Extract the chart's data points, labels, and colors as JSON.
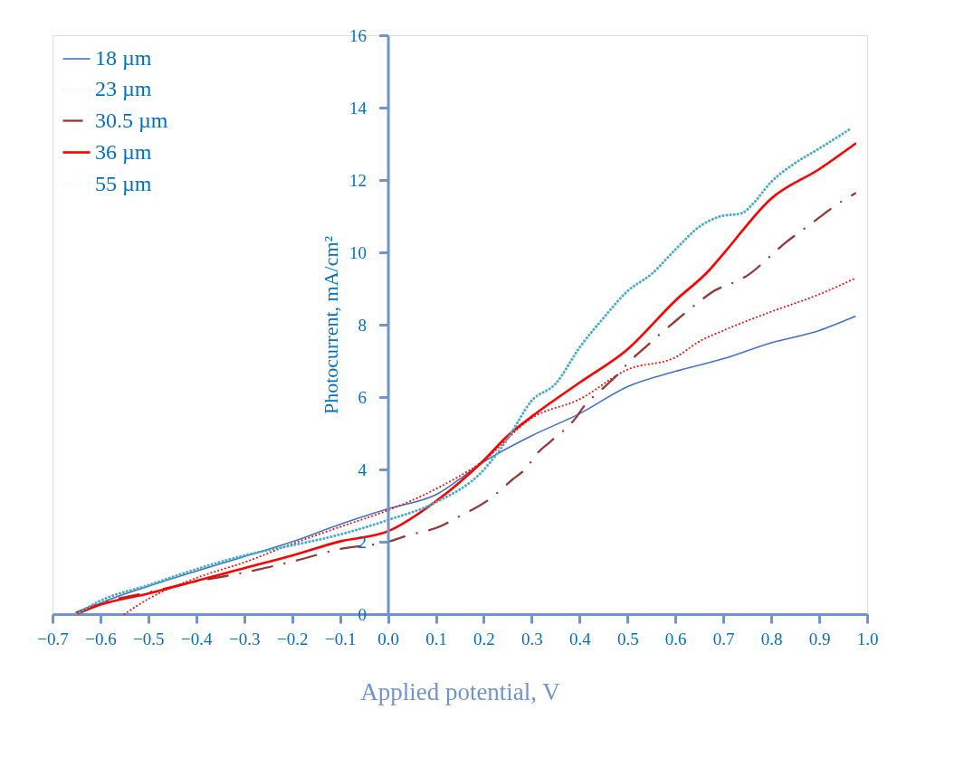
{
  "chart_data": {
    "type": "line",
    "xlabel": "Applied potential, V",
    "ylabel": "Photocurrent, mA/cm²",
    "xlim": [
      -0.7,
      1.0
    ],
    "ylim": [
      0,
      16
    ],
    "xticks": [
      -0.7,
      -0.6,
      -0.5,
      -0.4,
      -0.3,
      -0.2,
      -0.1,
      {
        "value": 0,
        "label": "0.0"
      },
      0.1,
      0.2,
      0.3,
      0.4,
      0.5,
      0.6,
      0.7,
      0.8,
      0.9,
      {
        "value": 1.0,
        "label": "1.0"
      }
    ],
    "yticks": [
      0,
      2,
      4,
      6,
      8,
      10,
      12,
      14,
      16
    ],
    "grid": false,
    "legend": "top left",
    "marker": "none",
    "series": [
      {
        "name": "18 µm",
        "color": "#4472c4",
        "line_style": "solid",
        "x": [
          -0.64,
          -0.6,
          -0.5,
          -0.4,
          -0.3,
          -0.2,
          -0.1,
          0,
          0.1,
          0.2,
          0.3,
          0.4,
          0.5,
          0.6,
          0.7,
          0.8,
          0.9,
          0.975
        ],
        "values": [
          0.05,
          0.3,
          0.77,
          1.19,
          1.59,
          2.0,
          2.48,
          2.91,
          3.3,
          4.21,
          4.93,
          5.54,
          6.29,
          6.71,
          7.06,
          7.5,
          7.84,
          8.23
        ]
      },
      {
        "name": "23 µm",
        "color": "#ff0000",
        "line_style": "dotted",
        "x": [
          -0.55,
          -0.5,
          -0.4,
          -0.3,
          -0.2,
          -0.1,
          0,
          0.1,
          0.2,
          0.3,
          0.4,
          0.5,
          0.6,
          0.65,
          0.7,
          0.8,
          0.9,
          0.975
        ],
        "values": [
          0,
          0.42,
          1.0,
          1.43,
          1.94,
          2.41,
          2.87,
          3.46,
          4.25,
          5.42,
          5.94,
          6.76,
          7.1,
          7.54,
          7.84,
          8.36,
          8.84,
          9.28
        ]
      },
      {
        "name": "30.5 µm",
        "color": "#953735",
        "line_style": "dashdot",
        "x": [
          -0.65,
          -0.6,
          -0.5,
          -0.4,
          -0.3,
          -0.2,
          -0.1,
          0,
          0.04,
          0.11,
          0.14,
          0.21,
          0.26,
          0.29,
          0.31,
          0.34,
          0.39,
          0.41,
          0.44,
          0.47,
          0.51,
          0.54,
          0.57,
          0.6,
          0.65,
          0.68,
          0.72,
          0.75,
          0.8,
          0.83,
          0.86,
          0.89,
          0.94,
          0.975
        ],
        "values": [
          0.05,
          0.3,
          0.6,
          0.9,
          1.15,
          1.45,
          1.8,
          2.0,
          2.17,
          2.43,
          2.64,
          3.16,
          3.72,
          4.06,
          4.42,
          4.78,
          5.39,
          5.76,
          6.14,
          6.5,
          7.06,
          7.41,
          7.77,
          8.1,
          8.64,
          8.93,
          9.16,
          9.36,
          9.92,
          10.27,
          10.57,
          10.86,
          11.35,
          11.63
        ]
      },
      {
        "name": "36 µm",
        "color": "#ff0000",
        "line_style": "solid",
        "x": [
          -0.65,
          -0.6,
          -0.5,
          -0.4,
          -0.3,
          -0.2,
          -0.1,
          0,
          0.1,
          0.2,
          0.25,
          0.3,
          0.4,
          0.5,
          0.6,
          0.67,
          0.7,
          0.8,
          0.9,
          0.975
        ],
        "values": [
          0,
          0.26,
          0.57,
          0.92,
          1.27,
          1.62,
          2.01,
          2.29,
          3.12,
          4.25,
          4.93,
          5.46,
          6.4,
          7.32,
          8.67,
          9.5,
          9.96,
          11.49,
          12.3,
          13.0
        ]
      },
      {
        "name": "55 µm",
        "color": "#4bacc6",
        "line_style": "dotted",
        "x": [
          -0.65,
          -0.6,
          -0.5,
          -0.4,
          -0.3,
          -0.2,
          -0.1,
          0,
          0.1,
          0.2,
          0.25,
          0.3,
          0.35,
          0.4,
          0.45,
          0.5,
          0.55,
          0.6,
          0.65,
          0.69,
          0.74,
          0.76,
          0.8,
          0.85,
          0.9,
          0.967
        ],
        "values": [
          0,
          0.37,
          0.8,
          1.24,
          1.62,
          1.9,
          2.2,
          2.6,
          3.09,
          3.99,
          4.85,
          5.9,
          6.37,
          7.37,
          8.19,
          8.93,
          9.4,
          10.08,
          10.71,
          10.98,
          11.09,
          11.32,
          11.95,
          12.47,
          12.87,
          13.43
        ]
      }
    ]
  }
}
